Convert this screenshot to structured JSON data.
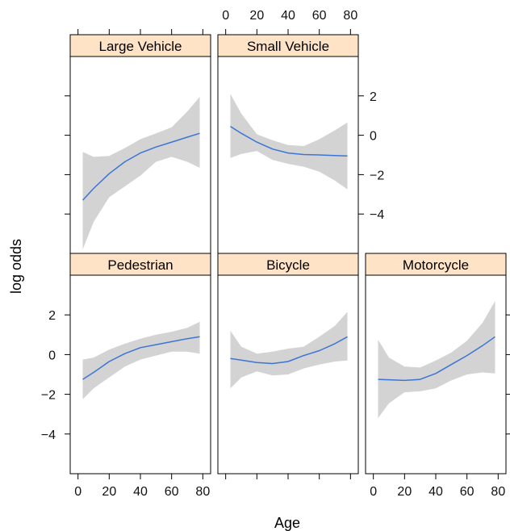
{
  "chart_data": {
    "type": "line",
    "layout": "lattice 3 columns x 2 rows",
    "xlabel": "Age",
    "ylabel": "log odds",
    "xlim": [
      -5,
      85
    ],
    "ylim": [
      -6,
      4
    ],
    "x_ticks": [
      0,
      20,
      40,
      60,
      80
    ],
    "y_ticks": [
      -4,
      -2,
      0,
      2
    ],
    "colors": {
      "line": "#3c74d6",
      "band": "#d3d3d3",
      "strip": "#ffe3c7",
      "frame": "#000000"
    },
    "panels": [
      {
        "name": "Large Vehicle",
        "x": [
          3,
          10,
          20,
          30,
          40,
          50,
          60,
          70,
          78
        ],
        "fit": [
          -3.3,
          -2.7,
          -1.95,
          -1.35,
          -0.9,
          -0.6,
          -0.35,
          -0.1,
          0.1
        ],
        "lower": [
          -5.8,
          -4.4,
          -3.15,
          -2.6,
          -2.05,
          -1.35,
          -1.1,
          -1.35,
          -1.65
        ],
        "upper": [
          -0.85,
          -1.1,
          -1.05,
          -0.65,
          -0.2,
          0.1,
          0.4,
          1.2,
          1.95
        ]
      },
      {
        "name": "Small Vehicle",
        "x": [
          3,
          10,
          20,
          30,
          40,
          50,
          60,
          70,
          78
        ],
        "fit": [
          0.45,
          0.1,
          -0.35,
          -0.7,
          -0.9,
          -0.98,
          -1.0,
          -1.03,
          -1.05
        ],
        "lower": [
          -1.15,
          -0.95,
          -0.8,
          -1.25,
          -1.45,
          -1.6,
          -1.85,
          -2.3,
          -2.75
        ],
        "upper": [
          2.1,
          1.1,
          0.05,
          -0.25,
          -0.5,
          -0.55,
          -0.2,
          0.25,
          0.65
        ]
      },
      {
        "name": "Pedestrian",
        "x": [
          3,
          10,
          20,
          30,
          40,
          50,
          60,
          70,
          78
        ],
        "fit": [
          -1.25,
          -0.9,
          -0.35,
          0.05,
          0.35,
          0.5,
          0.65,
          0.8,
          0.9
        ],
        "lower": [
          -2.25,
          -1.7,
          -1.15,
          -0.6,
          -0.25,
          -0.05,
          0.15,
          0.15,
          0.05
        ],
        "upper": [
          -0.25,
          -0.15,
          0.25,
          0.55,
          0.8,
          1.0,
          1.15,
          1.35,
          1.65
        ]
      },
      {
        "name": "Bicycle",
        "x": [
          3,
          10,
          20,
          30,
          40,
          50,
          60,
          70,
          78
        ],
        "fit": [
          -0.2,
          -0.28,
          -0.4,
          -0.45,
          -0.35,
          -0.05,
          0.2,
          0.55,
          0.9
        ],
        "lower": [
          -1.7,
          -1.15,
          -0.85,
          -1.05,
          -1.0,
          -0.7,
          -0.5,
          -0.35,
          -0.3
        ],
        "upper": [
          1.2,
          0.4,
          0.05,
          0.15,
          0.3,
          0.4,
          0.9,
          1.45,
          2.15
        ]
      },
      {
        "name": "Motorcycle",
        "x": [
          3,
          10,
          20,
          30,
          40,
          50,
          60,
          70,
          78
        ],
        "fit": [
          -1.25,
          -1.27,
          -1.3,
          -1.25,
          -0.95,
          -0.5,
          -0.05,
          0.45,
          0.9
        ],
        "lower": [
          -3.2,
          -2.45,
          -1.9,
          -1.85,
          -1.7,
          -1.3,
          -1.0,
          -0.9,
          -0.95
        ],
        "upper": [
          0.75,
          -0.15,
          -0.6,
          -0.65,
          -0.3,
          0.1,
          0.7,
          1.6,
          2.7
        ]
      }
    ]
  }
}
